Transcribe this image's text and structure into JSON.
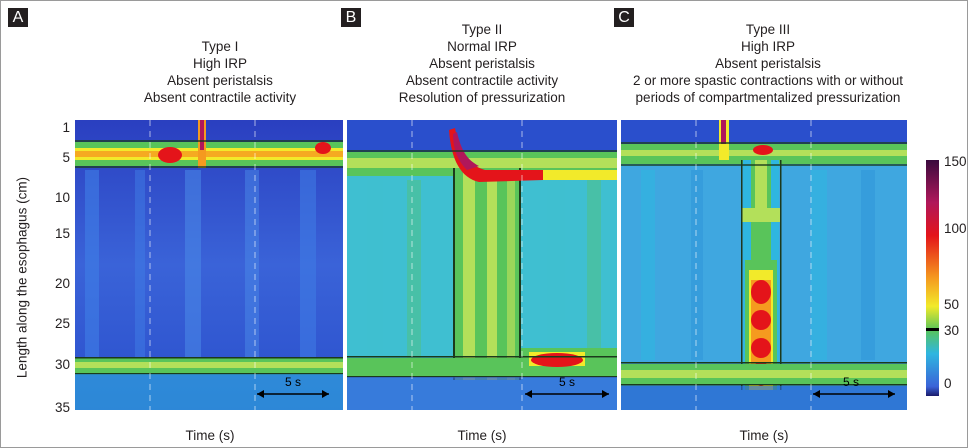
{
  "panels": [
    {
      "letter": "A",
      "caption": [
        "Type I",
        "High IRP",
        "Absent peristalsis",
        "Absent contractile activity"
      ],
      "xlabel": "Time (s)",
      "scale": "5 s"
    },
    {
      "letter": "B",
      "caption": [
        "Type II",
        "Normal IRP",
        "Absent peristalsis",
        "Absent contractile activity",
        "Resolution of pressurization"
      ],
      "xlabel": "Time (s)",
      "scale": "5 s"
    },
    {
      "letter": "C",
      "caption": [
        "Type III",
        "High IRP",
        "Absent peristalsis",
        "2 or more spastic contractions with or without",
        "periods of compartmentalized pressurization"
      ],
      "xlabel": "Time (s)",
      "scale": "5 s"
    }
  ],
  "y_axis": {
    "label": "Length along the esophagus (cm)",
    "ticks": [
      "1",
      "5",
      "10",
      "15",
      "20",
      "25",
      "30",
      "35"
    ],
    "range": [
      0,
      35
    ]
  },
  "colorbar": {
    "ticks": [
      "150",
      "100",
      "50",
      "30",
      "0"
    ],
    "values": [
      150,
      100,
      50,
      30,
      0
    ]
  },
  "colors": {
    "deep_blue": "#2a3fc0",
    "blue": "#3a63d8",
    "cyan": "#2fb6e0",
    "green": "#59c45a",
    "yellow": "#f2ea2a",
    "orange": "#f59a1f",
    "red": "#e4141a",
    "magenta": "#b0175a",
    "purple": "#3a0a3e"
  }
}
